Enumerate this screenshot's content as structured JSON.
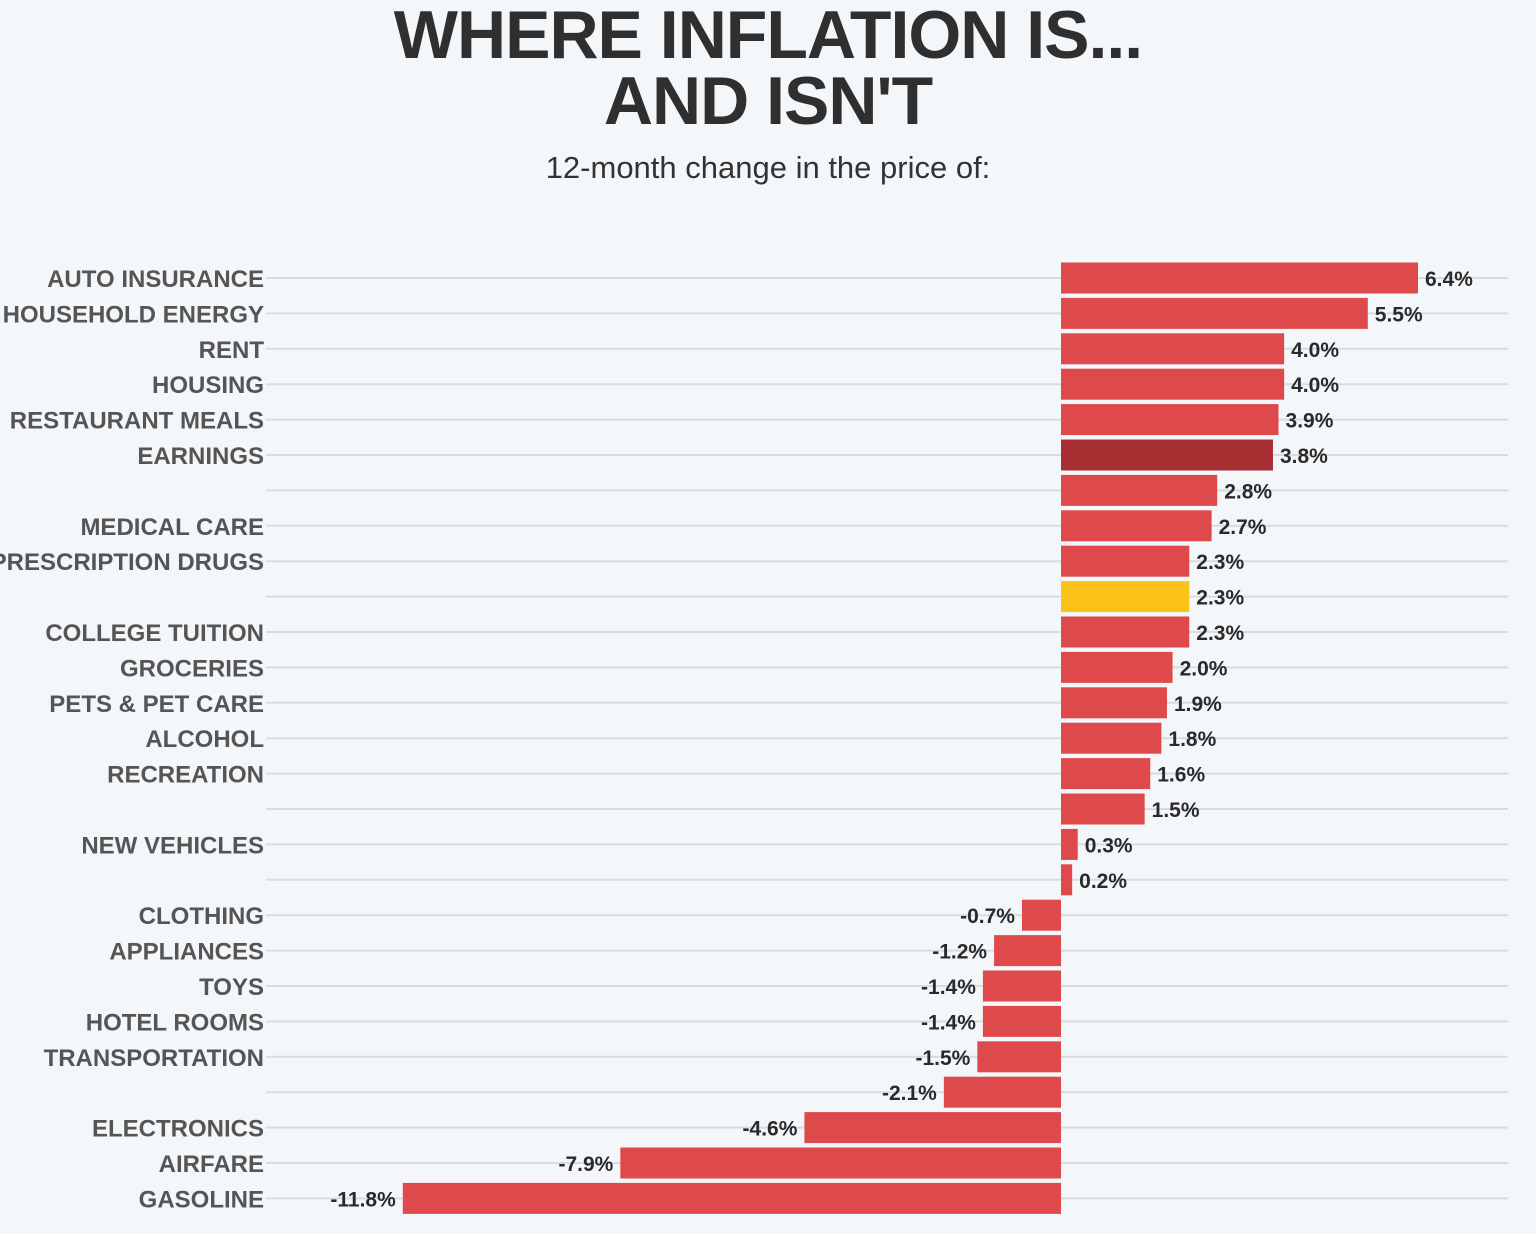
{
  "chart_data": {
    "type": "bar",
    "orientation": "horizontal",
    "title": "WHERE INFLATION IS... AND ISN'T",
    "title_lines": [
      "WHERE INFLATION IS...",
      "AND ISN'T"
    ],
    "subtitle": "12-month change in the price of:",
    "xlabel": "",
    "ylabel": "",
    "xlim": [
      -11.8,
      6.4
    ],
    "grid": true,
    "legend": "none",
    "categories": [
      "AUTO INSURANCE",
      "HOUSEHOLD ENERGY",
      "RENT",
      "HOUSING",
      "RESTAURANT MEALS",
      "EARNINGS",
      "",
      "MEDICAL CARE",
      "PRESCRIPTION DRUGS",
      "",
      "COLLEGE TUITION",
      "GROCERIES",
      "PETS & PET CARE",
      "ALCOHOL",
      "RECREATION",
      "",
      "NEW VEHICLES",
      "",
      "CLOTHING",
      "APPLIANCES",
      "TOYS",
      "HOTEL ROOMS",
      "TRANSPORTATION",
      "",
      "ELECTRONICS",
      "AIRFARE",
      "GASOLINE"
    ],
    "values": [
      6.4,
      5.5,
      4.0,
      4.0,
      3.9,
      3.8,
      2.8,
      2.7,
      2.3,
      2.3,
      2.3,
      2.0,
      1.9,
      1.8,
      1.6,
      1.5,
      0.3,
      0.2,
      -0.7,
      -1.2,
      -1.4,
      -1.4,
      -1.5,
      -2.1,
      -4.6,
      -7.9,
      -11.8
    ],
    "value_labels": [
      "6.4%",
      "5.5%",
      "4.0%",
      "4.0%",
      "3.9%",
      "3.8%",
      "2.8%",
      "2.7%",
      "2.3%",
      "2.3%",
      "2.3%",
      "2.0%",
      "1.9%",
      "1.8%",
      "1.6%",
      "1.5%",
      "0.3%",
      "0.2%",
      "-0.7%",
      "-1.2%",
      "-1.4%",
      "-1.4%",
      "-1.5%",
      "-2.1%",
      "-4.6%",
      "-7.9%",
      "-11.8%"
    ],
    "colors": {
      "default": "#de4a4b",
      "earnings": "#a82f32",
      "highlight": "#fcc419",
      "grid": "#d9dcdf",
      "background": "#f4f7fa"
    },
    "color_keys": [
      "default",
      "default",
      "default",
      "default",
      "default",
      "earnings",
      "default",
      "default",
      "default",
      "highlight",
      "default",
      "default",
      "default",
      "default",
      "default",
      "default",
      "default",
      "default",
      "default",
      "default",
      "default",
      "default",
      "default",
      "default",
      "default",
      "default",
      "default"
    ]
  }
}
